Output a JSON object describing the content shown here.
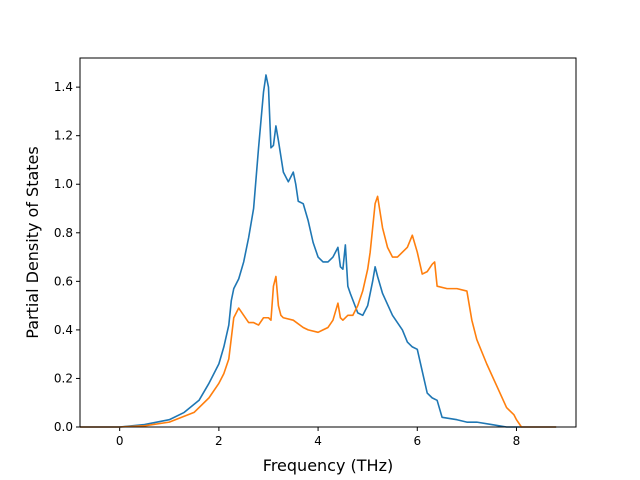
{
  "chart_data": {
    "type": "line",
    "title": "",
    "xlabel": "Frequency (THz)",
    "ylabel": "Partial Density of States",
    "xlim": [
      -0.8,
      9.2
    ],
    "ylim": [
      0.0,
      1.52
    ],
    "xticks": [
      0,
      2,
      4,
      6,
      8
    ],
    "xtick_labels": [
      "0",
      "2",
      "4",
      "6",
      "8"
    ],
    "yticks": [
      0.0,
      0.2,
      0.4,
      0.6,
      0.8,
      1.0,
      1.2,
      1.4
    ],
    "ytick_labels": [
      "0.0",
      "0.2",
      "0.4",
      "0.6",
      "0.8",
      "1.0",
      "1.2",
      "1.4"
    ],
    "grid": false,
    "legend": "none",
    "series": [
      {
        "color": "#1f77b4",
        "x": [
          -0.8,
          0.0,
          0.5,
          1.0,
          1.3,
          1.6,
          1.8,
          2.0,
          2.1,
          2.2,
          2.25,
          2.3,
          2.4,
          2.5,
          2.6,
          2.7,
          2.8,
          2.9,
          2.95,
          3.0,
          3.05,
          3.1,
          3.15,
          3.2,
          3.3,
          3.4,
          3.5,
          3.55,
          3.6,
          3.7,
          3.8,
          3.9,
          4.0,
          4.1,
          4.2,
          4.3,
          4.4,
          4.45,
          4.5,
          4.55,
          4.6,
          4.65,
          4.8,
          4.9,
          5.0,
          5.1,
          5.15,
          5.2,
          5.3,
          5.5,
          5.7,
          5.8,
          5.9,
          6.0,
          6.2,
          6.3,
          6.4,
          6.5,
          6.8,
          7.0,
          7.2,
          7.5,
          7.8,
          8.0,
          8.8
        ],
        "y": [
          0.0,
          0.0,
          0.01,
          0.03,
          0.06,
          0.11,
          0.18,
          0.26,
          0.33,
          0.42,
          0.52,
          0.57,
          0.61,
          0.68,
          0.78,
          0.9,
          1.15,
          1.38,
          1.45,
          1.4,
          1.15,
          1.16,
          1.24,
          1.18,
          1.05,
          1.01,
          1.05,
          1.0,
          0.93,
          0.92,
          0.85,
          0.76,
          0.7,
          0.68,
          0.68,
          0.7,
          0.74,
          0.66,
          0.65,
          0.75,
          0.58,
          0.55,
          0.47,
          0.46,
          0.5,
          0.6,
          0.66,
          0.62,
          0.55,
          0.46,
          0.4,
          0.35,
          0.33,
          0.32,
          0.14,
          0.12,
          0.11,
          0.04,
          0.03,
          0.02,
          0.02,
          0.01,
          0.0,
          0.0,
          0.0
        ]
      },
      {
        "color": "#ff7f0e",
        "x": [
          -0.8,
          0.0,
          0.5,
          1.0,
          1.5,
          1.8,
          2.0,
          2.1,
          2.2,
          2.3,
          2.4,
          2.5,
          2.6,
          2.7,
          2.8,
          2.9,
          3.0,
          3.05,
          3.1,
          3.15,
          3.2,
          3.25,
          3.3,
          3.5,
          3.7,
          3.8,
          4.0,
          4.1,
          4.2,
          4.3,
          4.4,
          4.45,
          4.5,
          4.6,
          4.7,
          4.8,
          4.9,
          5.0,
          5.05,
          5.1,
          5.15,
          5.2,
          5.3,
          5.4,
          5.5,
          5.6,
          5.8,
          5.9,
          6.0,
          6.1,
          6.2,
          6.3,
          6.35,
          6.4,
          6.6,
          6.8,
          7.0,
          7.1,
          7.2,
          7.4,
          7.6,
          7.8,
          7.95,
          8.0,
          8.1,
          8.8
        ],
        "y": [
          0.0,
          0.0,
          0.005,
          0.02,
          0.06,
          0.12,
          0.18,
          0.22,
          0.28,
          0.45,
          0.49,
          0.46,
          0.43,
          0.43,
          0.42,
          0.45,
          0.45,
          0.44,
          0.58,
          0.62,
          0.5,
          0.46,
          0.45,
          0.44,
          0.41,
          0.4,
          0.39,
          0.4,
          0.41,
          0.44,
          0.51,
          0.45,
          0.44,
          0.46,
          0.46,
          0.5,
          0.56,
          0.65,
          0.72,
          0.82,
          0.92,
          0.95,
          0.82,
          0.74,
          0.7,
          0.7,
          0.74,
          0.79,
          0.72,
          0.63,
          0.64,
          0.67,
          0.68,
          0.58,
          0.57,
          0.57,
          0.56,
          0.44,
          0.36,
          0.26,
          0.17,
          0.08,
          0.05,
          0.03,
          0.0,
          0.0
        ]
      }
    ]
  }
}
